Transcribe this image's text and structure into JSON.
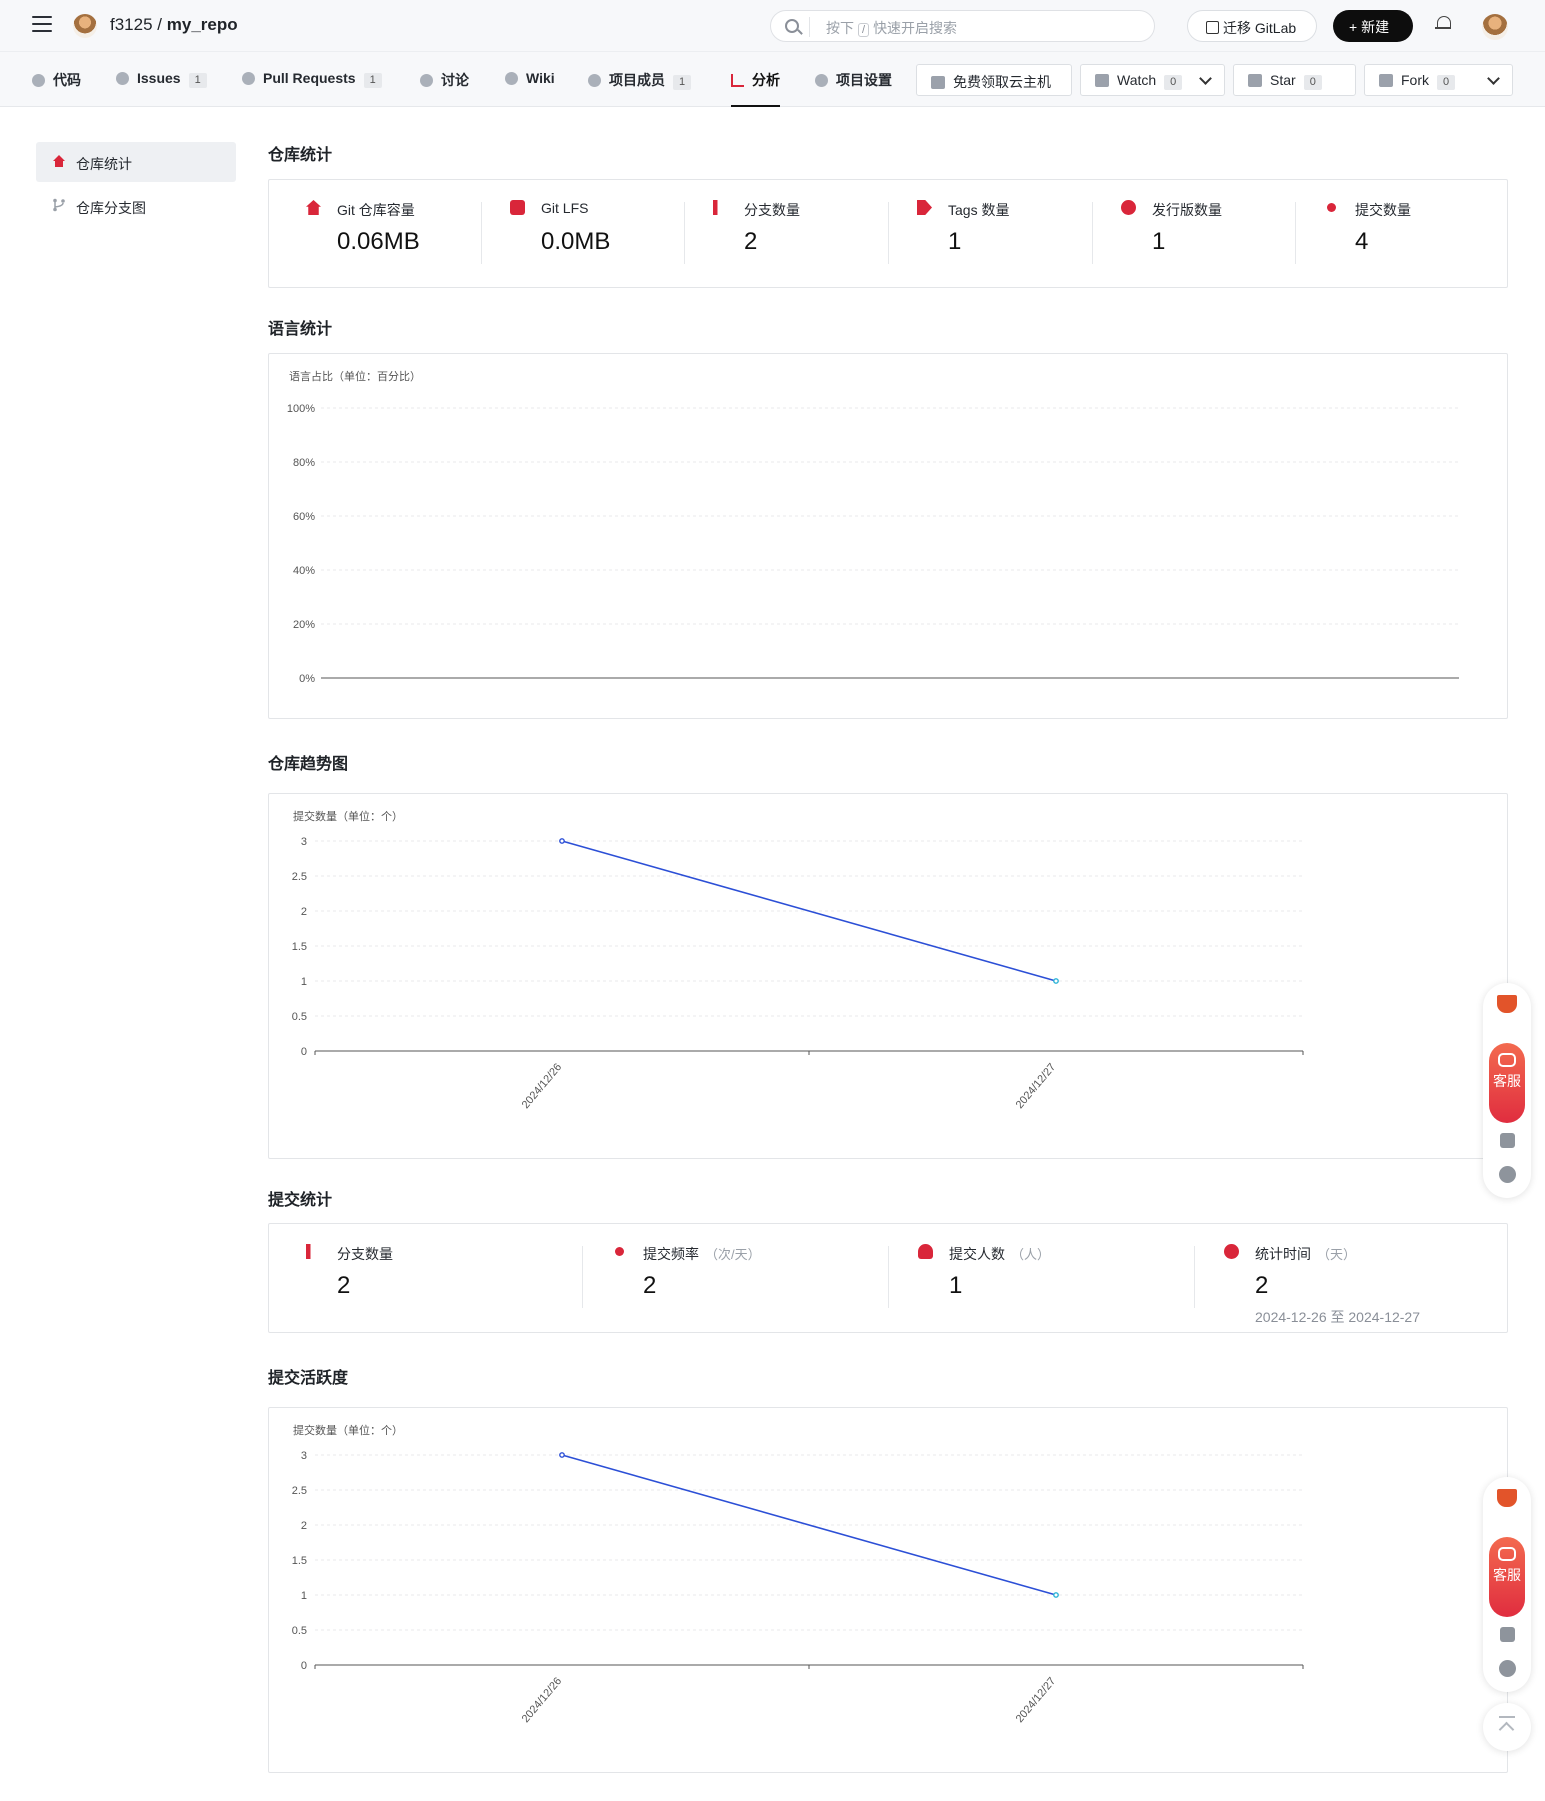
{
  "header": {
    "owner": "f3125",
    "separator": "/",
    "repo": "my_repo",
    "search": {
      "prefix": "按下",
      "key": "/",
      "suffix": "快速开启搜索"
    },
    "migrate_label": "迁移 GitLab",
    "new_label": "+ 新建"
  },
  "nav": {
    "tabs": [
      {
        "label": "代码",
        "count": ""
      },
      {
        "label": "Issues",
        "count": "1"
      },
      {
        "label": "Pull Requests",
        "count": "1"
      },
      {
        "label": "讨论",
        "count": ""
      },
      {
        "label": "Wiki",
        "count": ""
      },
      {
        "label": "项目成员",
        "count": "1"
      },
      {
        "label": "分析",
        "count": "",
        "active": true
      },
      {
        "label": "项目设置",
        "count": ""
      }
    ],
    "cloud_label": "免费领取云主机",
    "watch": {
      "label": "Watch",
      "count": "0"
    },
    "star": {
      "label": "Star",
      "count": "0"
    },
    "fork": {
      "label": "Fork",
      "count": "0"
    }
  },
  "sidebar": {
    "items": [
      {
        "label": "仓库统计",
        "active": true
      },
      {
        "label": "仓库分支图"
      }
    ]
  },
  "repo_stats": {
    "title": "仓库统计",
    "items": [
      {
        "label": "Git 仓库容量",
        "value": "0.06MB"
      },
      {
        "label": "Git LFS",
        "value": "0.0MB"
      },
      {
        "label": "分支数量",
        "value": "2"
      },
      {
        "label": "Tags 数量",
        "value": "1"
      },
      {
        "label": "发行版数量",
        "value": "1"
      },
      {
        "label": "提交数量",
        "value": "4"
      }
    ]
  },
  "language_stats": {
    "title": "语言统计",
    "chart_title": "语言占比（单位：百分比）",
    "y_ticks": [
      "100%",
      "80%",
      "60%",
      "40%",
      "20%",
      "0%"
    ]
  },
  "trend": {
    "title": "仓库趋势图"
  },
  "commit_stats": {
    "title": "提交统计",
    "items": [
      {
        "label": "分支数量",
        "unit": "",
        "value": "2",
        "sub": ""
      },
      {
        "label": "提交频率",
        "unit": "（次/天）",
        "value": "2",
        "sub": ""
      },
      {
        "label": "提交人数",
        "unit": "（人）",
        "value": "1",
        "sub": ""
      },
      {
        "label": "统计时间",
        "unit": "（天）",
        "value": "2",
        "sub": "2024-12-26 至 2024-12-27"
      }
    ]
  },
  "activity": {
    "title": "提交活跃度"
  },
  "floating": {
    "service_label": "客服"
  },
  "colors": {
    "accent": "#d9263a",
    "line": "#2c4fd6",
    "dot_end": "#2bb3d6"
  },
  "chart_data": [
    {
      "type": "bar",
      "title": "语言占比（单位：百分比）",
      "categories": [],
      "values": [],
      "ylim": [
        0,
        100
      ],
      "y_ticks": [
        "100%",
        "80%",
        "60%",
        "40%",
        "20%",
        "0%"
      ],
      "grid": true
    },
    {
      "type": "line",
      "title": "提交数量（单位：个）",
      "x": [
        "2024/12/26",
        "2024/12/27"
      ],
      "values": [
        3,
        1
      ],
      "ylim": [
        0,
        3
      ],
      "y_ticks": [
        "3",
        "2.5",
        "2",
        "1.5",
        "1",
        "0.5",
        "0"
      ],
      "grid": true
    },
    {
      "type": "line",
      "title": "提交数量（单位：个）",
      "x": [
        "2024/12/26",
        "2024/12/27"
      ],
      "values": [
        3,
        1
      ],
      "ylim": [
        0,
        3
      ],
      "y_ticks": [
        "3",
        "2.5",
        "2",
        "1.5",
        "1",
        "0.5",
        "0"
      ],
      "grid": true
    }
  ]
}
